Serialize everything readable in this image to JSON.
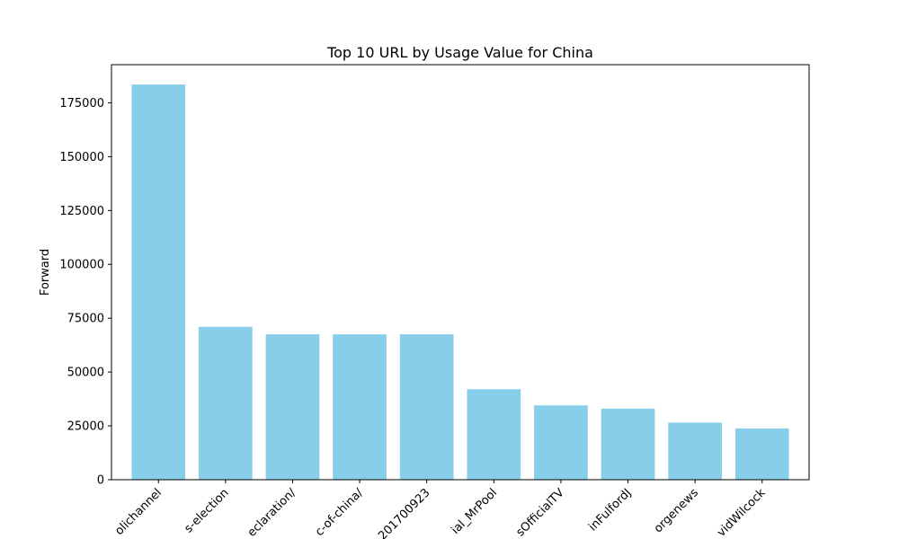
{
  "chart_data": {
    "type": "bar",
    "title": "Top 10 URL by Usage Value for China",
    "xlabel": "",
    "ylabel": "Forward",
    "categories": [
      "olichannel",
      "s-election",
      "eclaration/",
      "c-of-china/",
      "201700923",
      "ial_MrPool",
      "sOfficialTV",
      "inFulfordJ",
      "orgenews",
      "vidWilcock"
    ],
    "values": [
      183500,
      71000,
      67500,
      67500,
      67500,
      42000,
      34500,
      33000,
      26500,
      23800
    ],
    "ylim": [
      0,
      192700
    ],
    "yticks": [
      0,
      25000,
      50000,
      75000,
      100000,
      125000,
      150000,
      175000
    ],
    "bar_color": "#87CEEB",
    "grid": false,
    "legend": "none"
  }
}
